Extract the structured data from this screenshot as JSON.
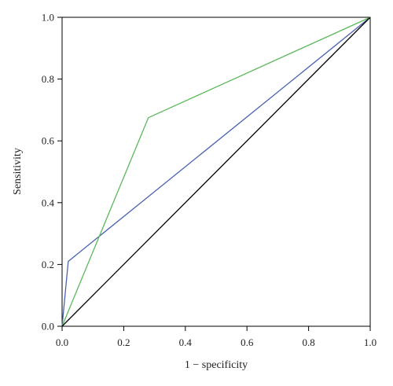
{
  "chart_data": {
    "type": "line",
    "xlabel": "1 − specificity",
    "ylabel": "Sensitivity",
    "xlim": [
      0,
      1
    ],
    "ylim": [
      0,
      1
    ],
    "grid": false,
    "x_ticks": [
      "0.0",
      "0.2",
      "0.4",
      "0.6",
      "0.8",
      "1.0"
    ],
    "y_ticks": [
      "0.0",
      "0.2",
      "0.4",
      "0.6",
      "0.8",
      "1.0"
    ],
    "series": [
      {
        "color": "#4a63b0",
        "points": [
          [
            0,
            0
          ],
          [
            0.02,
            0.21
          ],
          [
            1,
            1
          ]
        ]
      },
      {
        "color": "#5cb85c",
        "points": [
          [
            0,
            0
          ],
          [
            0.28,
            0.675
          ],
          [
            1,
            1
          ]
        ]
      },
      {
        "color": "#000000",
        "points": [
          [
            0,
            0
          ],
          [
            1,
            1
          ]
        ]
      }
    ]
  }
}
